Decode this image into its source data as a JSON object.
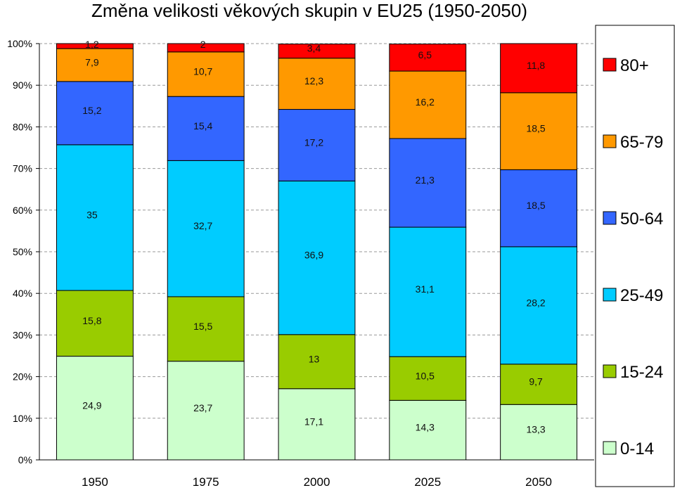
{
  "chart_data": {
    "type": "bar",
    "stacked": true,
    "title": "Změna velikosti věkových skupin v EU25 (1950-2050)",
    "xlabel": "",
    "ylabel": "",
    "ylim": [
      0,
      100
    ],
    "y_ticks": [
      "0%",
      "10%",
      "20%",
      "30%",
      "40%",
      "50%",
      "60%",
      "70%",
      "80%",
      "90%",
      "100%"
    ],
    "y_tick_values": [
      0,
      10,
      20,
      30,
      40,
      50,
      60,
      70,
      80,
      90,
      100
    ],
    "grid": true,
    "legend_position": "right",
    "categories": [
      "1950",
      "1975",
      "2000",
      "2025",
      "2050"
    ],
    "series": [
      {
        "name": "0-14",
        "color": "#ccffcc",
        "values": [
          24.9,
          23.7,
          17.1,
          14.3,
          13.3
        ],
        "labels": [
          "24,9",
          "23,7",
          "17,1",
          "14,3",
          "13,3"
        ]
      },
      {
        "name": "15-24",
        "color": "#99cc00",
        "values": [
          15.8,
          15.5,
          13,
          10.5,
          9.7
        ],
        "labels": [
          "15,8",
          "15,5",
          "13",
          "10,5",
          "9,7"
        ]
      },
      {
        "name": "25-49",
        "color": "#00ccff",
        "values": [
          35,
          32.7,
          36.9,
          31.1,
          28.2
        ],
        "labels": [
          "35",
          "32,7",
          "36,9",
          "31,1",
          "28,2"
        ]
      },
      {
        "name": "50-64",
        "color": "#3366ff",
        "values": [
          15.2,
          15.4,
          17.2,
          21.3,
          18.5
        ],
        "labels": [
          "15,2",
          "15,4",
          "17,2",
          "21,3",
          "18,5"
        ]
      },
      {
        "name": "65-79",
        "color": "#ff9900",
        "values": [
          7.9,
          10.7,
          12.3,
          16.2,
          18.5
        ],
        "labels": [
          "7,9",
          "10,7",
          "12,3",
          "16,2",
          "18,5"
        ]
      },
      {
        "name": "80+",
        "color": "#ff0000",
        "values": [
          1.2,
          2,
          3.4,
          6.5,
          11.8
        ],
        "labels": [
          "1,2",
          "2",
          "3,4",
          "6,5",
          "11,8"
        ]
      }
    ]
  }
}
